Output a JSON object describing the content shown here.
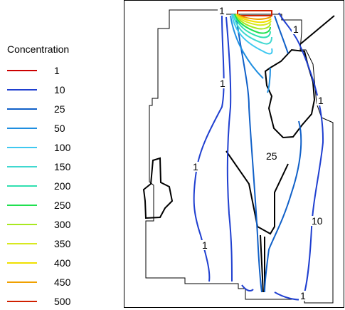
{
  "legend": {
    "title": "Concentration",
    "entries": [
      {
        "label": "1",
        "color": "#cc0000"
      },
      {
        "label": "10",
        "color": "#1f3fd0"
      },
      {
        "label": "25",
        "color": "#1060c8"
      },
      {
        "label": "50",
        "color": "#1f8ee0"
      },
      {
        "label": "100",
        "color": "#3fc8f0"
      },
      {
        "label": "150",
        "color": "#40d8d0"
      },
      {
        "label": "200",
        "color": "#30e0b0"
      },
      {
        "label": "250",
        "color": "#20e050"
      },
      {
        "label": "300",
        "color": "#a8e820"
      },
      {
        "label": "350",
        "color": "#d8e820"
      },
      {
        "label": "400",
        "color": "#f0e000"
      },
      {
        "label": "450",
        "color": "#f0a000"
      },
      {
        "label": "500",
        "color": "#d02000"
      }
    ]
  },
  "contour_labels": {
    "top_1": "1",
    "upper_right_1": "1",
    "mid_left_1": "1",
    "right_1": "1",
    "left_1": "1",
    "center_25": "25",
    "right_10": "10",
    "lower_left_1": "1",
    "bottom_1": "1"
  },
  "colors": {
    "boundary": "#000000",
    "contour_blue": "#1f3fd0"
  }
}
